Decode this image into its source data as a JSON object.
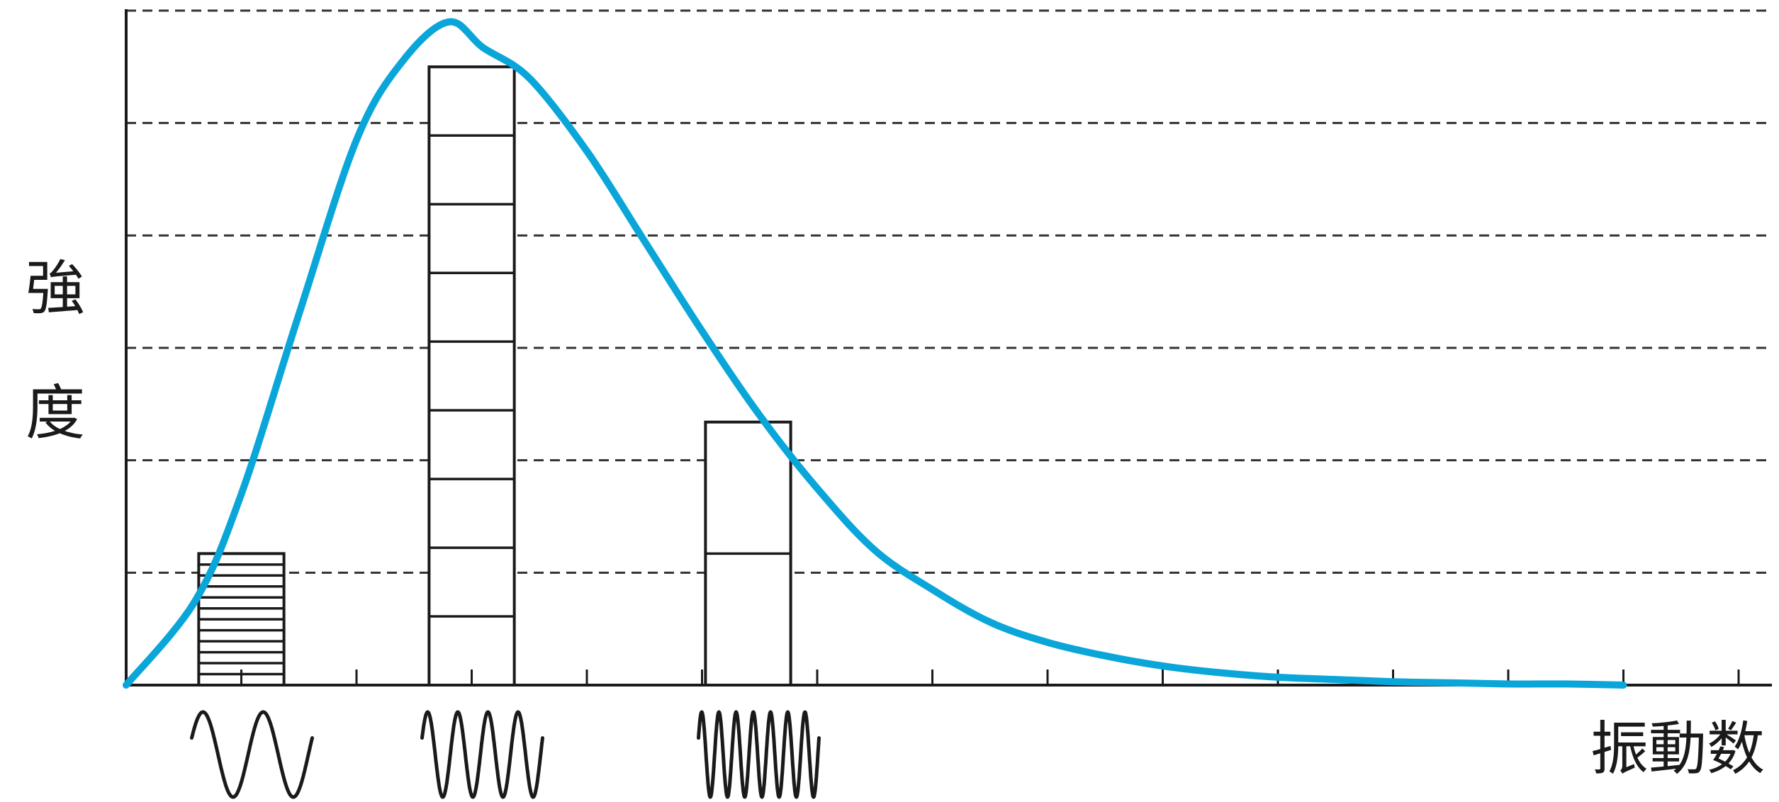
{
  "chart_data": {
    "type": "bar",
    "xlabel": "振動数",
    "ylabel": "強度",
    "ylabel_chars": [
      "強",
      "度"
    ],
    "xlim": [
      0,
      14
    ],
    "ylim": [
      0,
      6
    ],
    "x_ticks": [
      0,
      1,
      2,
      3,
      4,
      5,
      6,
      7,
      8,
      9,
      10,
      11,
      12,
      13,
      14
    ],
    "y_gridlines": [
      1,
      2,
      3,
      4,
      5,
      6
    ],
    "grid": "horizontal-dashed",
    "bars": [
      {
        "x": 1,
        "width": 0.74,
        "value": 1.17,
        "segments": 12
      },
      {
        "x": 3,
        "width": 0.74,
        "value": 5.5,
        "segments": 9
      },
      {
        "x": 5.4,
        "width": 0.74,
        "value": 2.34,
        "segments": 2
      }
    ],
    "curve": {
      "color": "#0aa6d9",
      "x": [
        0.0,
        0.6,
        1.0,
        1.5,
        2.0,
        2.4,
        2.8,
        3.1,
        3.5,
        4.0,
        4.5,
        5.0,
        5.5,
        6.0,
        6.5,
        7.0,
        7.5,
        8.0,
        8.5,
        9.0,
        9.5,
        10.0,
        10.5,
        11.0,
        11.5,
        12.0,
        12.5,
        13.0
      ],
      "values": [
        0.0,
        0.75,
        1.7,
        3.3,
        4.85,
        5.55,
        5.9,
        5.67,
        5.4,
        4.75,
        3.95,
        3.15,
        2.4,
        1.75,
        1.2,
        0.85,
        0.56,
        0.38,
        0.26,
        0.17,
        0.11,
        0.07,
        0.05,
        0.03,
        0.02,
        0.01,
        0.01,
        0.0
      ]
    },
    "waves": [
      {
        "under_bar": 1,
        "cycles": 2
      },
      {
        "under_bar": 2,
        "cycles": 4
      },
      {
        "under_bar": 3,
        "cycles": 7
      }
    ]
  }
}
